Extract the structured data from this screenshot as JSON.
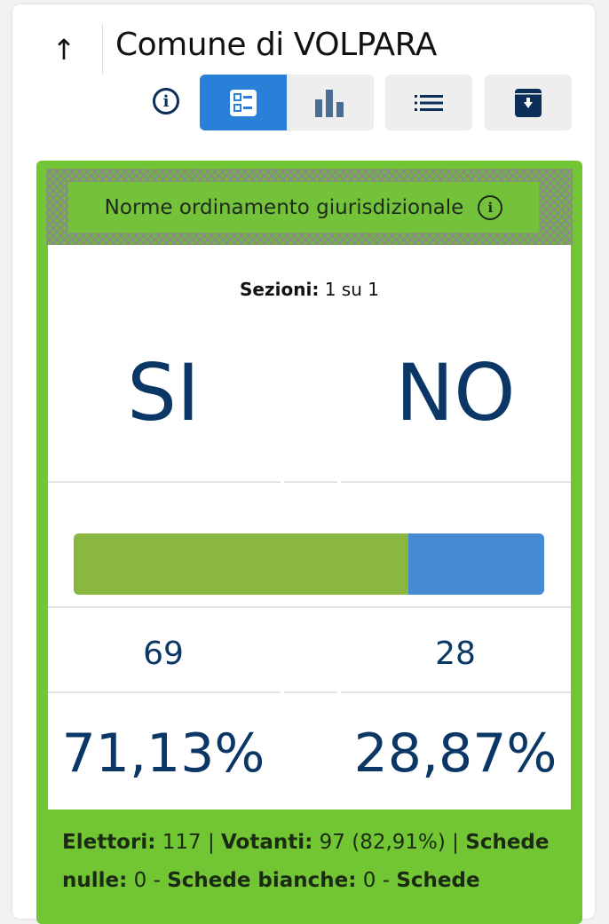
{
  "header": {
    "title": "Comune di VOLPARA",
    "back_icon": "arrow-up-icon"
  },
  "toolbar": {
    "info_icon": "info-icon",
    "buttons": [
      {
        "icon": "list-details-icon",
        "active": true
      },
      {
        "icon": "bar-chart-icon",
        "active": false
      },
      {
        "icon": "list-icon",
        "active": false
      },
      {
        "icon": "archive-download-icon",
        "active": false
      }
    ]
  },
  "question": {
    "title": "Norme ordinamento giurisdizionale",
    "info_icon": "info-icon"
  },
  "sections": {
    "label": "Sezioni:",
    "value": "1 su 1"
  },
  "results": {
    "si": {
      "label": "SI",
      "votes": "69",
      "percent": "71,13%",
      "fraction": 71.13,
      "color": "#8ab73f"
    },
    "no": {
      "label": "NO",
      "votes": "28",
      "percent": "28,87%",
      "fraction": 28.87,
      "color": "#448bd4"
    }
  },
  "footer": {
    "elettori_label": "Elettori:",
    "elettori": "117",
    "votanti_label": "Votanti:",
    "votanti": "97 (82,91%)",
    "nulle_label": "Schede nulle:",
    "nulle": "0",
    "bianche_label": "Schede bianche:",
    "bianche": "0",
    "schede_label": "Schede"
  },
  "colors": {
    "accent": "#2a7fd8",
    "panel": "#72c633",
    "text": "#0b3766"
  }
}
